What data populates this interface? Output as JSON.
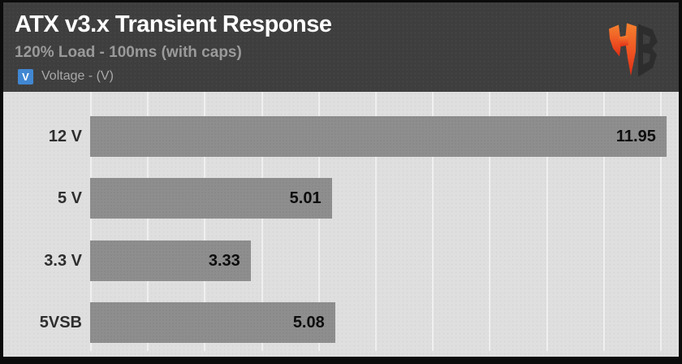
{
  "header": {
    "title": "ATX v3.x Transient Response",
    "subtitle": "120% Load - 100ms (with caps)",
    "legend": {
      "symbol": "V",
      "label": "Voltage - (V)"
    }
  },
  "chart_data": {
    "type": "bar",
    "orientation": "horizontal",
    "title": "ATX v3.x Transient Response",
    "subtitle": "120% Load - 100ms (with caps)",
    "legend": [
      {
        "symbol": "V",
        "label": "Voltage - (V)",
        "color": "#4187d2"
      }
    ],
    "legend_position": "top-left",
    "categories": [
      "12 V",
      "5 V",
      "3.3 V",
      "5VSB"
    ],
    "values": [
      11.95,
      5.01,
      3.33,
      5.08
    ],
    "value_labels": [
      "11.95",
      "5.01",
      "3.33",
      "5.08"
    ],
    "xlim": [
      0,
      12.12
    ],
    "grid": true,
    "gridline_count": 11,
    "value_labels_position": "inside-end"
  },
  "colors": {
    "accent_blue": "#4187d2",
    "bar": "#8e8e8e",
    "plot_background": "#dfdfdf",
    "header_background": "#3e3e3e",
    "frame_border": "#0b0b0b",
    "title_text": "#ffffff",
    "subtitle_text": "#9a9a9a",
    "category_text": "#2e2e2e",
    "value_text": "#0d0d0d",
    "logo_orange": "#f47428",
    "logo_red": "#e23317",
    "logo_dark": "#2d2d2d"
  }
}
